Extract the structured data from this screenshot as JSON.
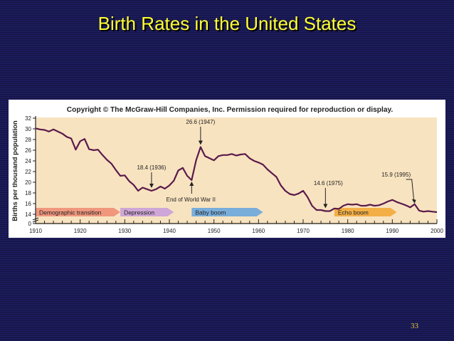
{
  "slide": {
    "title": "Birth Rates in the United States",
    "page_number": "33"
  },
  "colors": {
    "background": "#1c1c5c",
    "title": "#ffff33",
    "plot_background": "#f8e3c0",
    "line": "#5a1a4a",
    "demographic_arrow": "#ee8e77",
    "depression_arrow": "#c99fd9",
    "baby_boom_arrow": "#6aa6dd",
    "echo_boom_arrow": "#f2a838"
  },
  "chart_data": {
    "type": "line",
    "copyright": "Copyright © The McGraw-Hill Companies, Inc. Permission required for reproduction or display.",
    "ylabel": "Births per thousand population",
    "xlabel": "",
    "xlim": [
      1910,
      2000
    ],
    "ylim": [
      0,
      32
    ],
    "x_ticks": [
      1910,
      1920,
      1930,
      1940,
      1950,
      1960,
      1970,
      1980,
      1990,
      2000
    ],
    "y_ticks": [
      0,
      14,
      16,
      18,
      20,
      22,
      24,
      26,
      28,
      30,
      32
    ],
    "grid": false,
    "series": [
      {
        "x": [
          1910,
          1911,
          1912,
          1913,
          1914,
          1915,
          1916,
          1917,
          1918,
          1919,
          1920,
          1921,
          1922,
          1923,
          1924,
          1925,
          1926,
          1927,
          1928,
          1929,
          1930,
          1931,
          1932,
          1933,
          1934,
          1935,
          1936,
          1937,
          1938,
          1939,
          1940,
          1941,
          1942,
          1943,
          1944,
          1945,
          1946,
          1947,
          1948,
          1949,
          1950,
          1951,
          1952,
          1953,
          1954,
          1955,
          1956,
          1957,
          1958,
          1959,
          1960,
          1961,
          1962,
          1963,
          1964,
          1965,
          1966,
          1967,
          1968,
          1969,
          1970,
          1971,
          1972,
          1973,
          1974,
          1975,
          1976,
          1977,
          1978,
          1979,
          1980,
          1981,
          1982,
          1983,
          1984,
          1985,
          1986,
          1987,
          1988,
          1989,
          1990,
          1991,
          1992,
          1993,
          1994,
          1995,
          1996,
          1997,
          1998,
          1999,
          2000
        ],
        "values": [
          30.1,
          29.9,
          29.8,
          29.5,
          29.9,
          29.5,
          29.1,
          28.5,
          28.2,
          26.1,
          27.7,
          28.1,
          26.2,
          26.0,
          26.1,
          25.1,
          24.2,
          23.5,
          22.3,
          21.2,
          21.3,
          20.2,
          19.5,
          18.4,
          19.0,
          18.7,
          18.4,
          18.7,
          19.2,
          18.8,
          19.4,
          20.3,
          22.2,
          22.7,
          21.2,
          20.4,
          24.1,
          26.6,
          24.9,
          24.5,
          24.1,
          24.9,
          25.1,
          25.1,
          25.3,
          25.0,
          25.2,
          25.3,
          24.5,
          24.0,
          23.7,
          23.3,
          22.4,
          21.7,
          21.0,
          19.4,
          18.4,
          17.8,
          17.6,
          17.9,
          18.4,
          17.2,
          15.6,
          14.8,
          14.8,
          14.6,
          14.6,
          15.1,
          15.0,
          15.6,
          15.9,
          15.8,
          15.9,
          15.6,
          15.6,
          15.8,
          15.6,
          15.7,
          16.0,
          16.4,
          16.7,
          16.3,
          16.0,
          15.7,
          15.3,
          15.9,
          14.7,
          14.5,
          14.6,
          14.5,
          14.4
        ]
      }
    ],
    "annotations": [
      {
        "text": "26.6 (1947)",
        "x": 1947,
        "y": 26.6
      },
      {
        "text": "18.4 (1936)",
        "x": 1936,
        "y": 18.4
      },
      {
        "text": "End of World War II",
        "x": 1945,
        "y": 20.4
      },
      {
        "text": "14.6 (1975)",
        "x": 1975,
        "y": 14.6
      },
      {
        "text": "15.9 (1995)",
        "x": 1995,
        "y": 15.9
      }
    ],
    "periods": [
      {
        "label": "Demographic transition",
        "start": 1910,
        "end": 1929
      },
      {
        "label": "Depression",
        "start": 1929,
        "end": 1941
      },
      {
        "label": "Baby boom",
        "start": 1945,
        "end": 1961
      },
      {
        "label": "Echo boom",
        "start": 1977,
        "end": 1991
      }
    ]
  }
}
